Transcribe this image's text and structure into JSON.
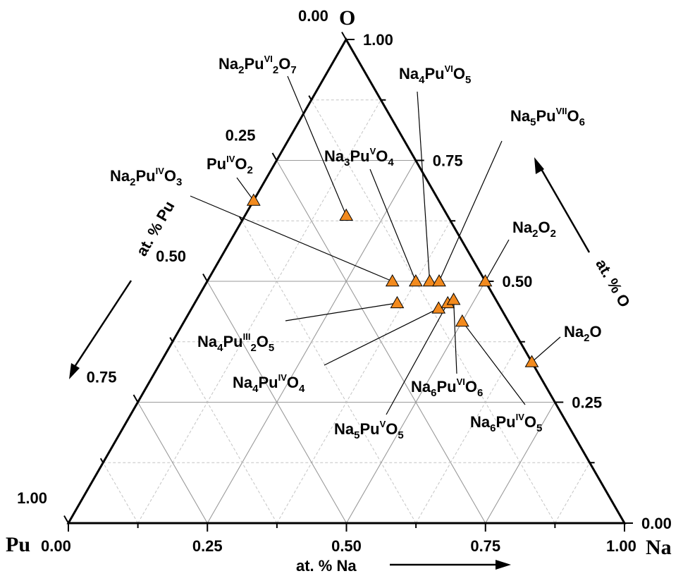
{
  "chart_data": {
    "type": "scatter",
    "subtype": "ternary",
    "vertices": {
      "bottom_left": "Pu",
      "bottom_right": "Na",
      "top": "O"
    },
    "axes": {
      "na": {
        "label": "at. % Na",
        "ticks": [
          "0.00",
          "0.25",
          "0.50",
          "0.75",
          "1.00"
        ]
      },
      "o": {
        "label": "at. % O",
        "ticks": [
          "0.00",
          "0.25",
          "0.50",
          "0.75",
          "1.00"
        ]
      },
      "pu": {
        "label": "at. % Pu",
        "ticks": [
          "0.25",
          "0.50",
          "0.75",
          "1.00"
        ]
      },
      "top_corner_tick": "0.00"
    },
    "grid": true,
    "marker_color": "#F28A1E",
    "points": [
      {
        "name": "PuO2",
        "na": 0.0,
        "pu": 0.333,
        "o": 0.667
      },
      {
        "name": "Na2Pu2O7",
        "na": 0.182,
        "pu": 0.182,
        "o": 0.636
      },
      {
        "name": "Na2PuO3",
        "na": 0.333,
        "pu": 0.167,
        "o": 0.5
      },
      {
        "name": "Na3PuO4",
        "na": 0.375,
        "pu": 0.125,
        "o": 0.5
      },
      {
        "name": "Na4PuO5",
        "na": 0.4,
        "pu": 0.1,
        "o": 0.5
      },
      {
        "name": "Na5PuO6",
        "na": 0.417,
        "pu": 0.083,
        "o": 0.5
      },
      {
        "name": "Na2O2",
        "na": 0.5,
        "pu": 0.0,
        "o": 0.5
      },
      {
        "name": "Na4Pu2O5",
        "na": 0.364,
        "pu": 0.182,
        "o": 0.455
      },
      {
        "name": "Na4PuO4",
        "na": 0.444,
        "pu": 0.111,
        "o": 0.444
      },
      {
        "name": "Na5PuO5",
        "na": 0.455,
        "pu": 0.091,
        "o": 0.455
      },
      {
        "name": "Na6PuO6",
        "na": 0.462,
        "pu": 0.077,
        "o": 0.462
      },
      {
        "name": "Na6PuO5",
        "na": 0.5,
        "pu": 0.083,
        "o": 0.417
      },
      {
        "name": "Na2O",
        "na": 0.667,
        "pu": 0.0,
        "o": 0.333
      }
    ],
    "labels": [
      {
        "id": "Na2Pu2O7",
        "parts": [
          [
            "Na",
            ""
          ],
          [
            "2",
            "sub"
          ],
          [
            "Pu",
            ""
          ],
          [
            "VI",
            "sup"
          ],
          [
            "2",
            "sub"
          ],
          [
            "O",
            ""
          ],
          [
            "7",
            "sub"
          ]
        ]
      },
      {
        "id": "Na4PuO5",
        "parts": [
          [
            "Na",
            ""
          ],
          [
            "4",
            "sub"
          ],
          [
            "Pu",
            ""
          ],
          [
            "VI",
            "sup"
          ],
          [
            "O",
            ""
          ],
          [
            "5",
            "sub"
          ]
        ]
      },
      {
        "id": "Na5PuO6",
        "parts": [
          [
            "Na",
            ""
          ],
          [
            "5",
            "sub"
          ],
          [
            "Pu",
            ""
          ],
          [
            "VII",
            "sup"
          ],
          [
            "O",
            ""
          ],
          [
            "6",
            "sub"
          ]
        ]
      },
      {
        "id": "PuO2",
        "parts": [
          [
            "Pu",
            ""
          ],
          [
            "IV",
            "sup"
          ],
          [
            "O",
            ""
          ],
          [
            "2",
            "sub"
          ]
        ]
      },
      {
        "id": "Na3PuO4",
        "parts": [
          [
            "Na",
            ""
          ],
          [
            "3",
            "sub"
          ],
          [
            "Pu",
            ""
          ],
          [
            "V",
            "sup"
          ],
          [
            "O",
            ""
          ],
          [
            "4",
            "sub"
          ]
        ]
      },
      {
        "id": "Na2PuO3",
        "parts": [
          [
            "Na",
            ""
          ],
          [
            "2",
            "sub"
          ],
          [
            "Pu",
            ""
          ],
          [
            "IV",
            "sup"
          ],
          [
            "O",
            ""
          ],
          [
            "3",
            "sub"
          ]
        ]
      },
      {
        "id": "Na2O2",
        "parts": [
          [
            "Na",
            ""
          ],
          [
            "2",
            "sub"
          ],
          [
            "O",
            ""
          ],
          [
            "2",
            "sub"
          ]
        ]
      },
      {
        "id": "Na2O",
        "parts": [
          [
            "Na",
            ""
          ],
          [
            "2",
            "sub"
          ],
          [
            "O",
            ""
          ]
        ]
      },
      {
        "id": "Na4Pu2O5",
        "parts": [
          [
            "Na",
            ""
          ],
          [
            "4",
            "sub"
          ],
          [
            "Pu",
            ""
          ],
          [
            "III",
            "sup"
          ],
          [
            "2",
            "sub"
          ],
          [
            "O",
            ""
          ],
          [
            "5",
            "sub"
          ]
        ]
      },
      {
        "id": "Na4PuO4",
        "parts": [
          [
            "Na",
            ""
          ],
          [
            "4",
            "sub"
          ],
          [
            "Pu",
            ""
          ],
          [
            "IV",
            "sup"
          ],
          [
            "O",
            ""
          ],
          [
            "4",
            "sub"
          ]
        ]
      },
      {
        "id": "Na6PuO6",
        "parts": [
          [
            "Na",
            ""
          ],
          [
            "6",
            "sub"
          ],
          [
            "Pu",
            ""
          ],
          [
            "VI",
            "sup"
          ],
          [
            "O",
            ""
          ],
          [
            "6",
            "sub"
          ]
        ]
      },
      {
        "id": "Na5PuO5",
        "parts": [
          [
            "Na",
            ""
          ],
          [
            "5",
            "sub"
          ],
          [
            "Pu",
            ""
          ],
          [
            "V",
            "sup"
          ],
          [
            "O",
            ""
          ],
          [
            "5",
            "sub"
          ]
        ]
      },
      {
        "id": "Na6PuO5",
        "parts": [
          [
            "Na",
            ""
          ],
          [
            "6",
            "sub"
          ],
          [
            "Pu",
            ""
          ],
          [
            "IV",
            "sup"
          ],
          [
            "O",
            ""
          ],
          [
            "5",
            "sub"
          ]
        ]
      }
    ]
  }
}
